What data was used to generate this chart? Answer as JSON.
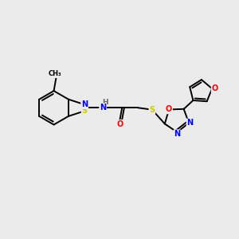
{
  "bg_color": "#ebebeb",
  "atom_colors": {
    "C": "#000000",
    "N": "#0000ff",
    "O": "#ff0000",
    "S": "#cccc00",
    "H": "#666666"
  },
  "bond_color": "#000000",
  "line_width": 1.4,
  "figsize": [
    3.0,
    3.0
  ],
  "dpi": 100,
  "xlim": [
    0,
    10
  ],
  "ylim": [
    0,
    10
  ]
}
